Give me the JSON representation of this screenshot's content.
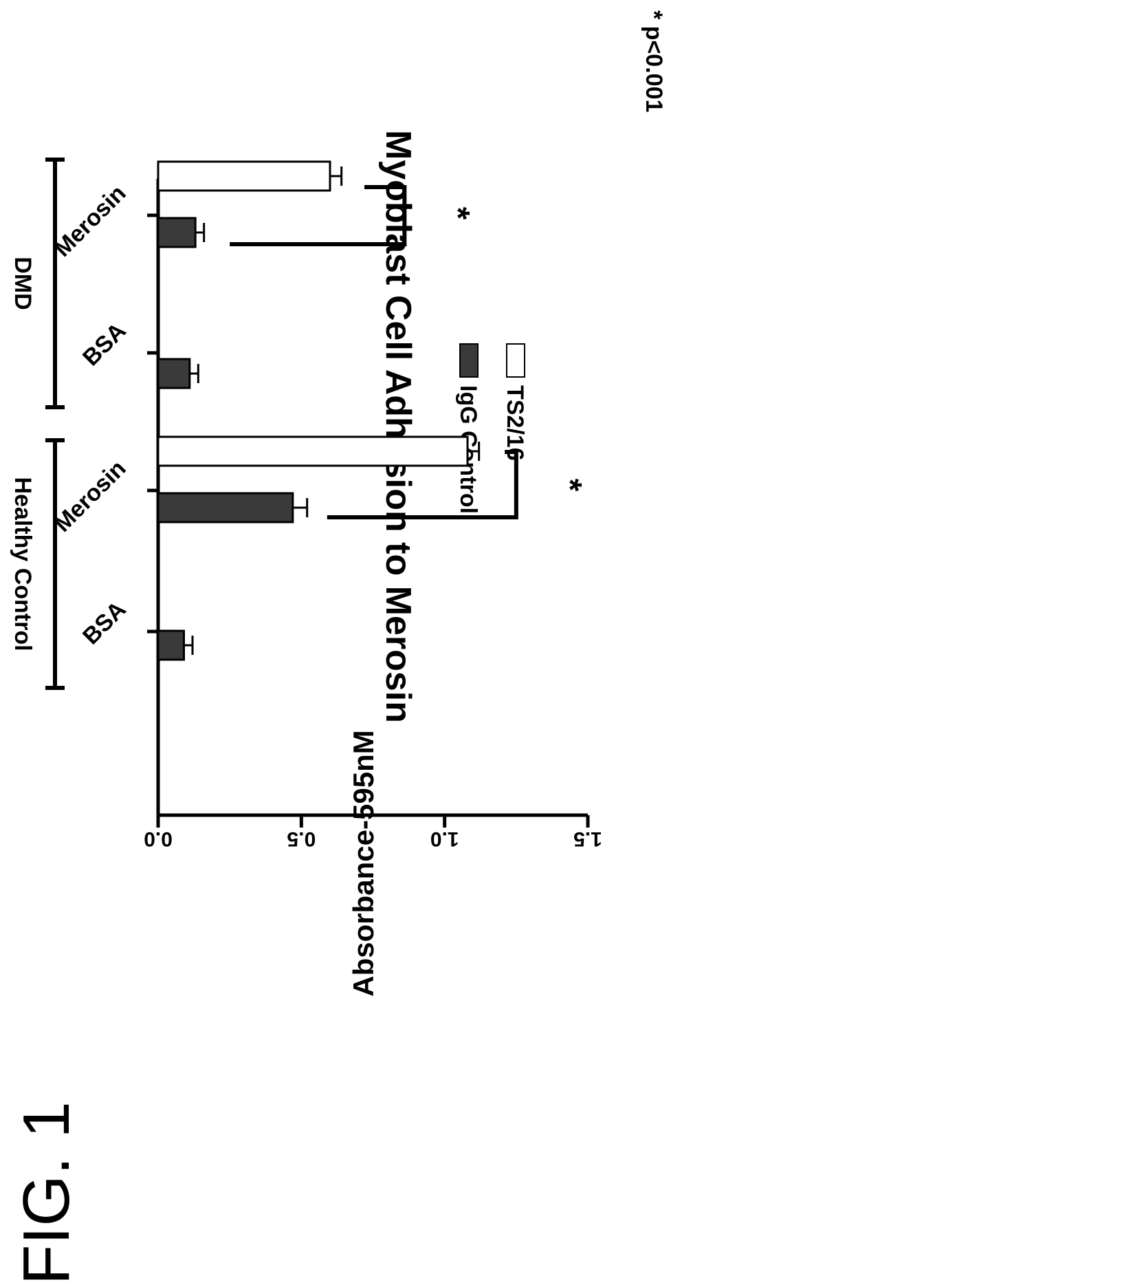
{
  "figure_label": "FIG. 1",
  "chart_data": {
    "type": "bar",
    "title": "Myoblast Cell Adhesion to Merosin",
    "xlabel": "",
    "ylabel": "Absorbance-595nM",
    "ylim": [
      0,
      1.5
    ],
    "yticks": [
      "0.0",
      "0.5",
      "1.0",
      "1.5"
    ],
    "groups": [
      {
        "label": "Healthy Control",
        "categories": [
          "BSA",
          "Merosin"
        ]
      },
      {
        "label": "DMD",
        "categories": [
          "BSA",
          "Merosin"
        ]
      }
    ],
    "bars": [
      {
        "group": "Healthy Control",
        "category": "BSA",
        "series": "IgG Control",
        "value": 0.09,
        "error": 0.03
      },
      {
        "group": "Healthy Control",
        "category": "Merosin",
        "series": "IgG Control",
        "value": 0.47,
        "error": 0.05
      },
      {
        "group": "Healthy Control",
        "category": "Merosin",
        "series": "TS2/16",
        "value": 1.08,
        "error": 0.04
      },
      {
        "group": "DMD",
        "category": "BSA",
        "series": "IgG Control",
        "value": 0.11,
        "error": 0.03
      },
      {
        "group": "DMD",
        "category": "Merosin",
        "series": "IgG Control",
        "value": 0.13,
        "error": 0.03
      },
      {
        "group": "DMD",
        "category": "Merosin",
        "series": "TS2/16",
        "value": 0.6,
        "error": 0.04
      }
    ],
    "series": [
      {
        "name": "IgG Control",
        "fill": "#3a3a3a"
      },
      {
        "name": "TS2/16",
        "fill": "#ffffff"
      }
    ],
    "significance": [
      {
        "group": "Healthy Control",
        "label": "*"
      },
      {
        "group": "DMD",
        "label": "*"
      }
    ],
    "annotation": "* p<0.001",
    "legend_position": "top"
  }
}
